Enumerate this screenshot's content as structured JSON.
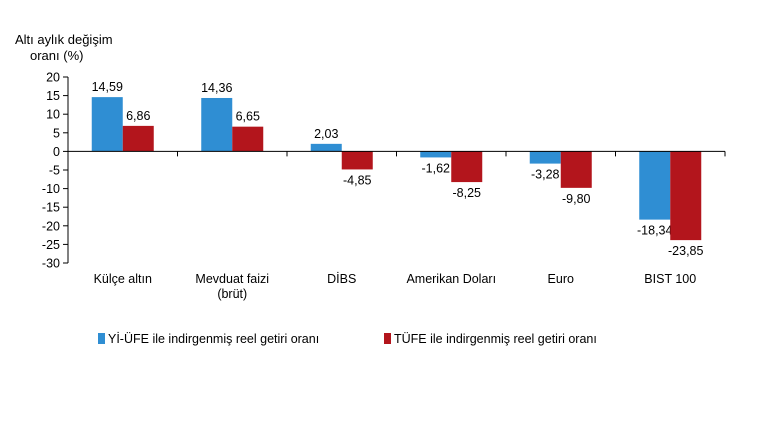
{
  "chart_data": {
    "type": "bar",
    "ylabel": [
      "Altı aylık değişim",
      "oranı (%)"
    ],
    "ylim": [
      -30,
      20
    ],
    "yticks": [
      20,
      15,
      10,
      5,
      0,
      -5,
      -10,
      -15,
      -20,
      -25,
      -30
    ],
    "categories": [
      [
        "Külçe altın"
      ],
      [
        "Mevduat faizi",
        "(brüt)"
      ],
      [
        "DİBS"
      ],
      [
        "Amerikan Doları"
      ],
      [
        "Euro"
      ],
      [
        "BIST 100"
      ]
    ],
    "series": [
      {
        "name": "Yİ-ÜFE ile indirgenmiş reel getiri oranı",
        "color": "#2f8ed3",
        "values": [
          14.59,
          14.36,
          2.03,
          -1.62,
          -3.28,
          -18.34
        ],
        "labels": [
          "14,59",
          "14,36",
          "2,03",
          "-1,62",
          "-3,28",
          "-18,34"
        ]
      },
      {
        "name": "TÜFE ile indirgenmiş reel getiri oranı",
        "color": "#b3151c",
        "values": [
          6.86,
          6.65,
          -4.85,
          -8.25,
          -9.8,
          -23.85
        ],
        "labels": [
          "6,86",
          "6,65",
          "-4,85",
          "-8,25",
          "-9,80",
          "-23,85"
        ]
      }
    ],
    "legend_position": "bottom",
    "grid": false
  }
}
